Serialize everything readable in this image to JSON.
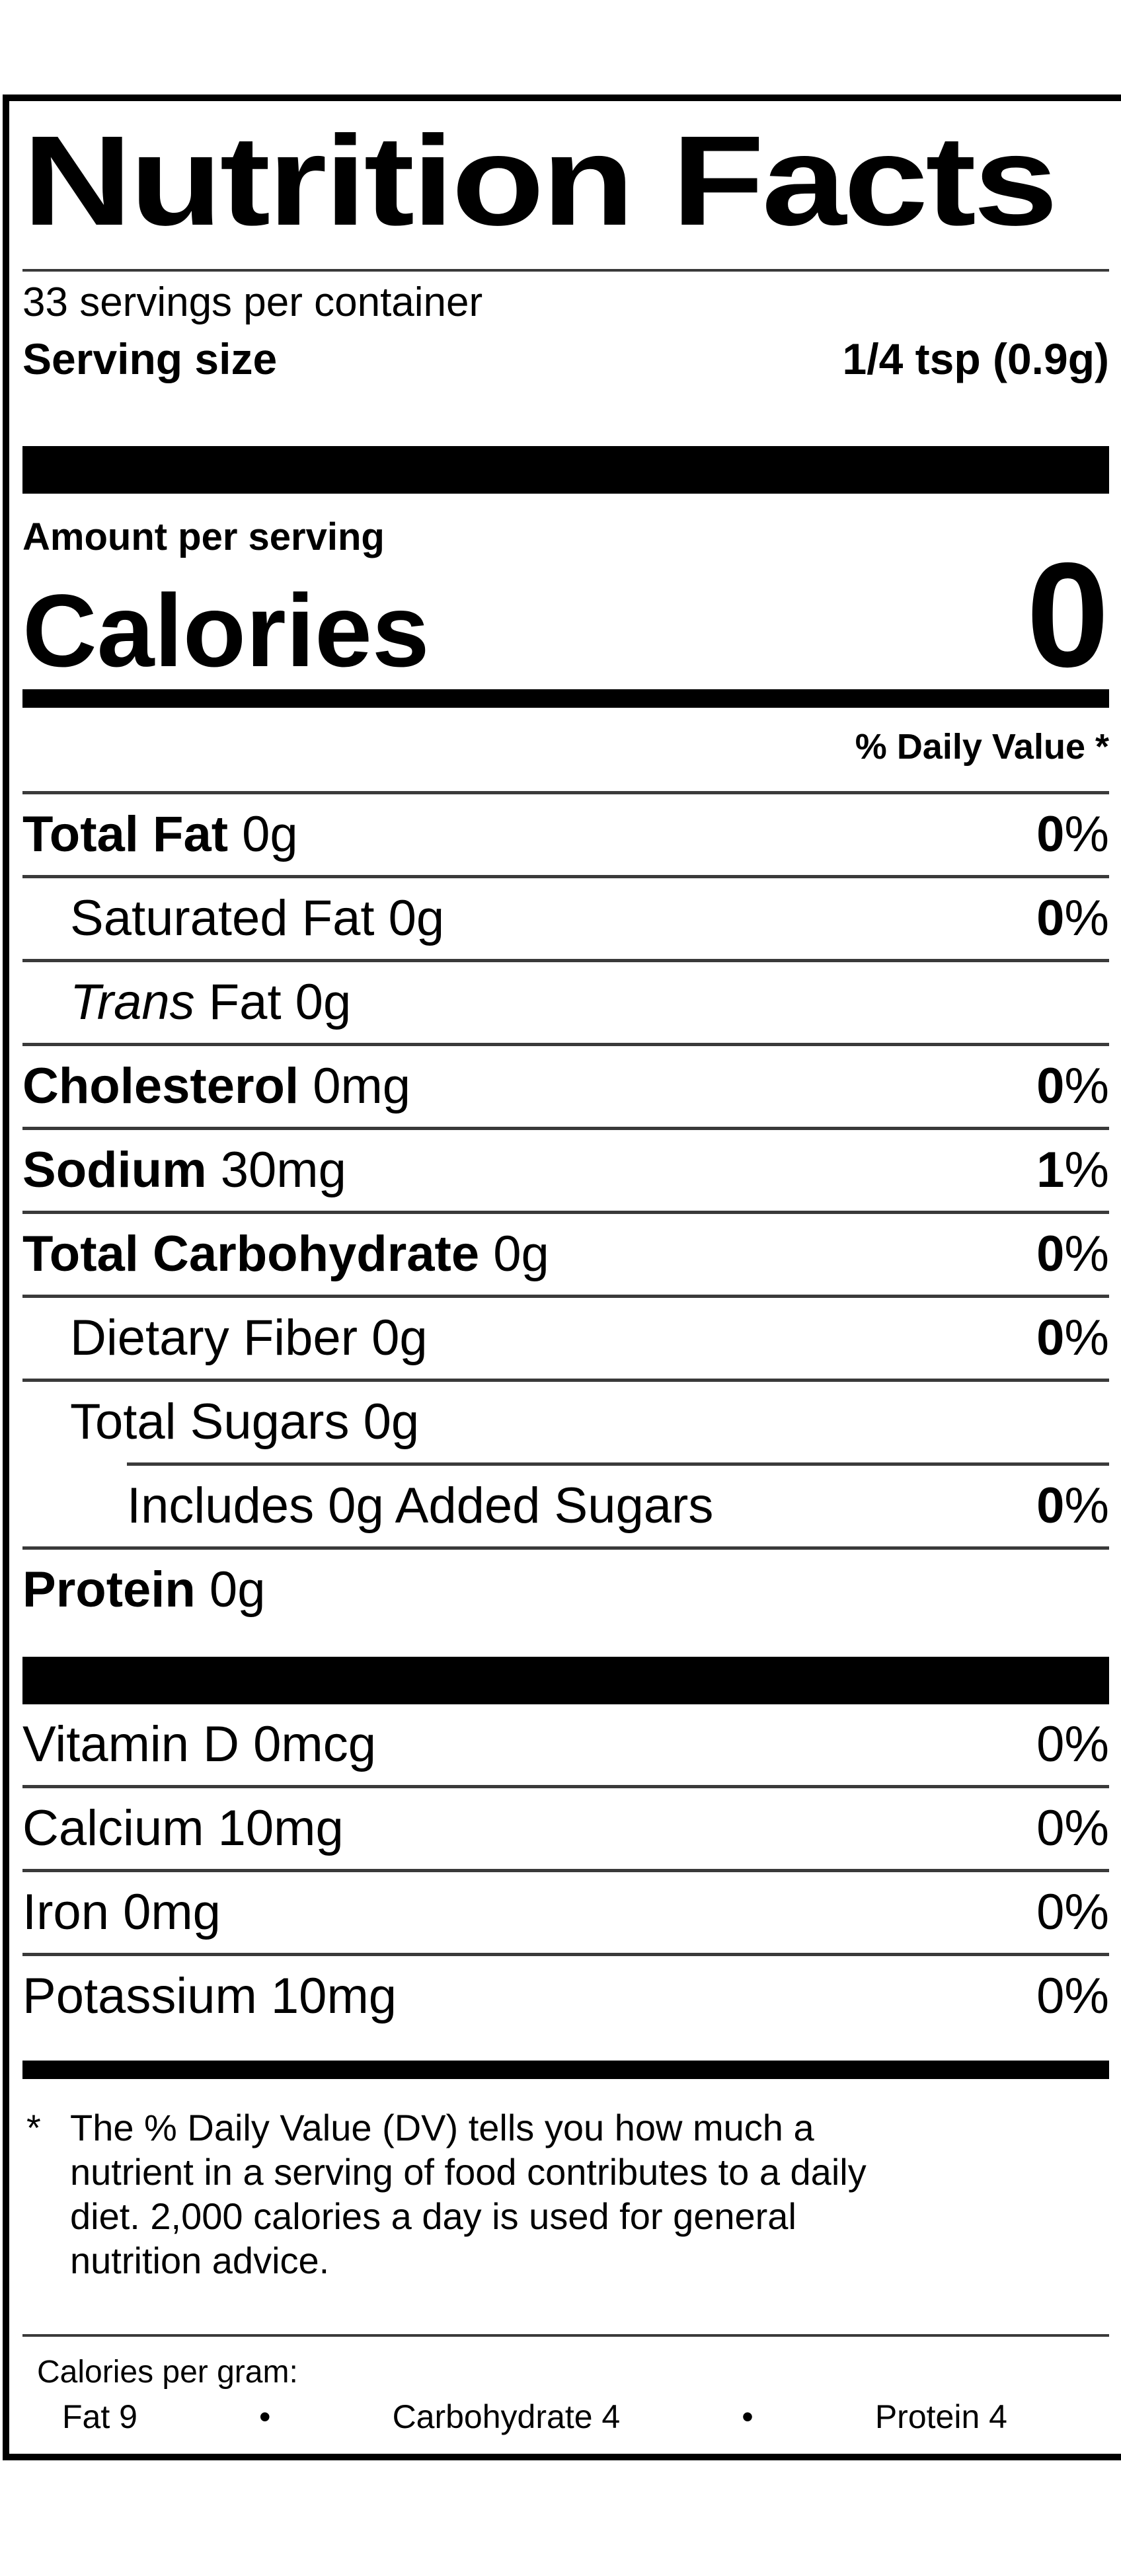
{
  "title": "Nutrition Facts",
  "servings_per_container": "33 servings per container",
  "serving_size": {
    "label": "Serving size",
    "value": "1/4 tsp (0.9g)"
  },
  "amount_per_serving": "Amount per serving",
  "calories": {
    "label": "Calories",
    "value": "0"
  },
  "daily_value_header": "% Daily Value *",
  "nutrients": [
    {
      "bold": "Total Fat",
      "rest": " 0g",
      "indent": 0,
      "dv": "0",
      "dv_bold": true,
      "rule": "full"
    },
    {
      "rest": "Saturated Fat 0g",
      "indent": 1,
      "dv": "0",
      "dv_bold": true,
      "rule": "full"
    },
    {
      "italic": "Trans",
      "rest": " Fat 0g",
      "indent": 1,
      "dv": null,
      "rule": "full"
    },
    {
      "bold": "Cholesterol",
      "rest": " 0mg",
      "indent": 0,
      "dv": "0",
      "dv_bold": true,
      "rule": "full"
    },
    {
      "bold": "Sodium",
      "rest": " 30mg",
      "indent": 0,
      "dv": "1",
      "dv_bold": true,
      "rule": "full"
    },
    {
      "bold": "Total Carbohydrate",
      "rest": " 0g",
      "indent": 0,
      "dv": "0",
      "dv_bold": true,
      "rule": "full"
    },
    {
      "rest": "Dietary Fiber 0g",
      "indent": 1,
      "dv": "0",
      "dv_bold": true,
      "rule": "full"
    },
    {
      "rest": "Total Sugars 0g",
      "indent": 1,
      "dv": null,
      "rule": "indent"
    },
    {
      "rest": "Includes 0g Added Sugars",
      "indent": 2,
      "dv": "0",
      "dv_bold": true,
      "rule": "full"
    },
    {
      "bold": "Protein",
      "rest": " 0g",
      "indent": 0,
      "dv": null,
      "rule": "none"
    }
  ],
  "micronutrients": [
    {
      "rest": "Vitamin D 0mcg",
      "dv": "0",
      "rule": "full"
    },
    {
      "rest": "Calcium 10mg",
      "dv": "0",
      "rule": "full"
    },
    {
      "rest": "Iron 0mg",
      "dv": "0",
      "rule": "full"
    },
    {
      "rest": "Potassium 10mg",
      "dv": "0",
      "rule": "none"
    }
  ],
  "footnote": {
    "marker": "*",
    "text": "The % Daily Value (DV) tells you how much a nutrient in a serving of food contributes to a daily diet. 2,000 calories a day is used for general nutrition advice."
  },
  "calories_per_gram": {
    "label": "Calories per gram:",
    "bullet": "•",
    "items": [
      "Fat 9",
      "Carbohydrate 4",
      "Protein 4"
    ]
  }
}
